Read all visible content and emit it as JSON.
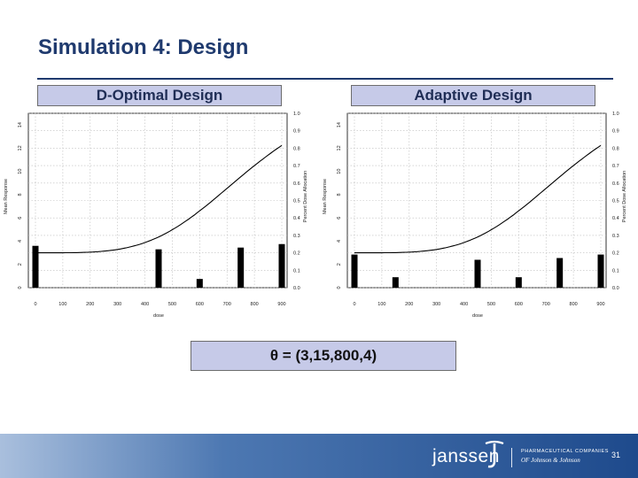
{
  "slide": {
    "title": "Simulation 4: Design",
    "theta": "θ = (3,15,800,4)",
    "page_number": "31",
    "footer": {
      "brand": "janssen",
      "tagline_top": "PHARMACEUTICAL COMPANIES",
      "tagline_bottom": "OF Johnson & Johnson"
    },
    "colors": {
      "title": "#1f3a6e",
      "label_bg": "#c6cae8",
      "footer": "#1e4a8c"
    }
  },
  "chart_data": [
    {
      "type": "bar+line",
      "panel_label": "D-Optimal Design",
      "xlabel": "dose",
      "ylabel": "Mean Response",
      "y2label": "Percent Dose Allocation",
      "xlim": [
        0,
        900
      ],
      "ylim": [
        0,
        15
      ],
      "y2lim": [
        0,
        1.0
      ],
      "xticks": [
        0,
        100,
        200,
        300,
        400,
        500,
        600,
        700,
        800,
        900
      ],
      "yticks": [
        0,
        2,
        4,
        6,
        8,
        10,
        12,
        14
      ],
      "y2ticks": [
        "0.0",
        "0.1",
        "0.2",
        "0.3",
        "0.4",
        "0.5",
        "0.6",
        "0.7",
        "0.8",
        "0.9",
        "1.0"
      ],
      "grid": true,
      "bars": {
        "doses": [
          0,
          450,
          600,
          750,
          900
        ],
        "allocation": [
          0.24,
          0.22,
          0.05,
          0.23,
          0.25
        ]
      },
      "curve": {
        "E0": 3,
        "Emax": 15,
        "ED50": 800,
        "hill": 4,
        "x_max": 900
      }
    },
    {
      "type": "bar+line",
      "panel_label": "Adaptive Design",
      "xlabel": "dose",
      "ylabel": "Mean Response",
      "y2label": "Percent Dose Allocation",
      "xlim": [
        0,
        900
      ],
      "ylim": [
        0,
        15
      ],
      "y2lim": [
        0,
        1.0
      ],
      "xticks": [
        0,
        100,
        200,
        300,
        400,
        500,
        600,
        700,
        800,
        900
      ],
      "yticks": [
        0,
        2,
        4,
        6,
        8,
        10,
        12,
        14
      ],
      "y2ticks": [
        "0.0",
        "0.1",
        "0.2",
        "0.3",
        "0.4",
        "0.5",
        "0.6",
        "0.7",
        "0.8",
        "0.9",
        "1.0"
      ],
      "grid": true,
      "bars": {
        "doses": [
          0,
          150,
          450,
          600,
          750,
          900
        ],
        "allocation": [
          0.19,
          0.06,
          0.16,
          0.06,
          0.17,
          0.19
        ]
      },
      "curve": {
        "E0": 3,
        "Emax": 15,
        "ED50": 800,
        "hill": 4,
        "x_max": 900
      }
    }
  ]
}
